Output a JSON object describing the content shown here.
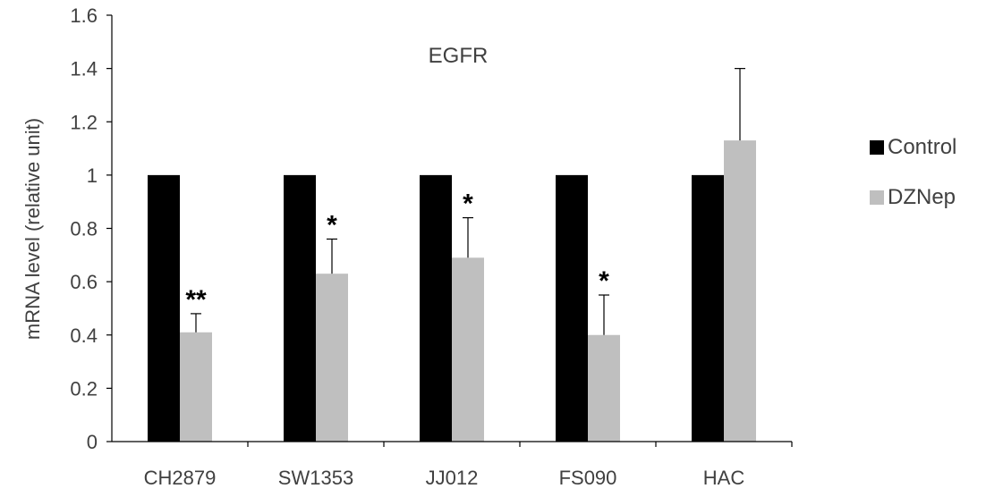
{
  "chart_data": {
    "type": "bar",
    "title": "EGFR",
    "xlabel": "",
    "ylabel": "mRNA level (relative unit)",
    "ylim": [
      0,
      1.6
    ],
    "yticks": [
      "0",
      "0.2",
      "0.4",
      "0.6",
      "0.8",
      "1",
      "1.2",
      "1.4",
      "1.6"
    ],
    "categories": [
      "CH2879",
      "SW1353",
      "JJ012",
      "FS090",
      "HAC"
    ],
    "series": [
      {
        "name": "Control",
        "color": "#000000",
        "values": [
          1,
          1,
          1,
          1,
          1
        ],
        "errors": [
          0,
          0,
          0,
          0,
          0
        ]
      },
      {
        "name": "DZNep",
        "color": "#bfbfbf",
        "values": [
          0.41,
          0.63,
          0.69,
          0.4,
          1.13
        ],
        "errors": [
          0.07,
          0.13,
          0.15,
          0.15,
          0.27
        ]
      }
    ],
    "significance": [
      "**",
      "*",
      "*",
      "*",
      ""
    ],
    "grid": false,
    "legend_position": "right"
  }
}
